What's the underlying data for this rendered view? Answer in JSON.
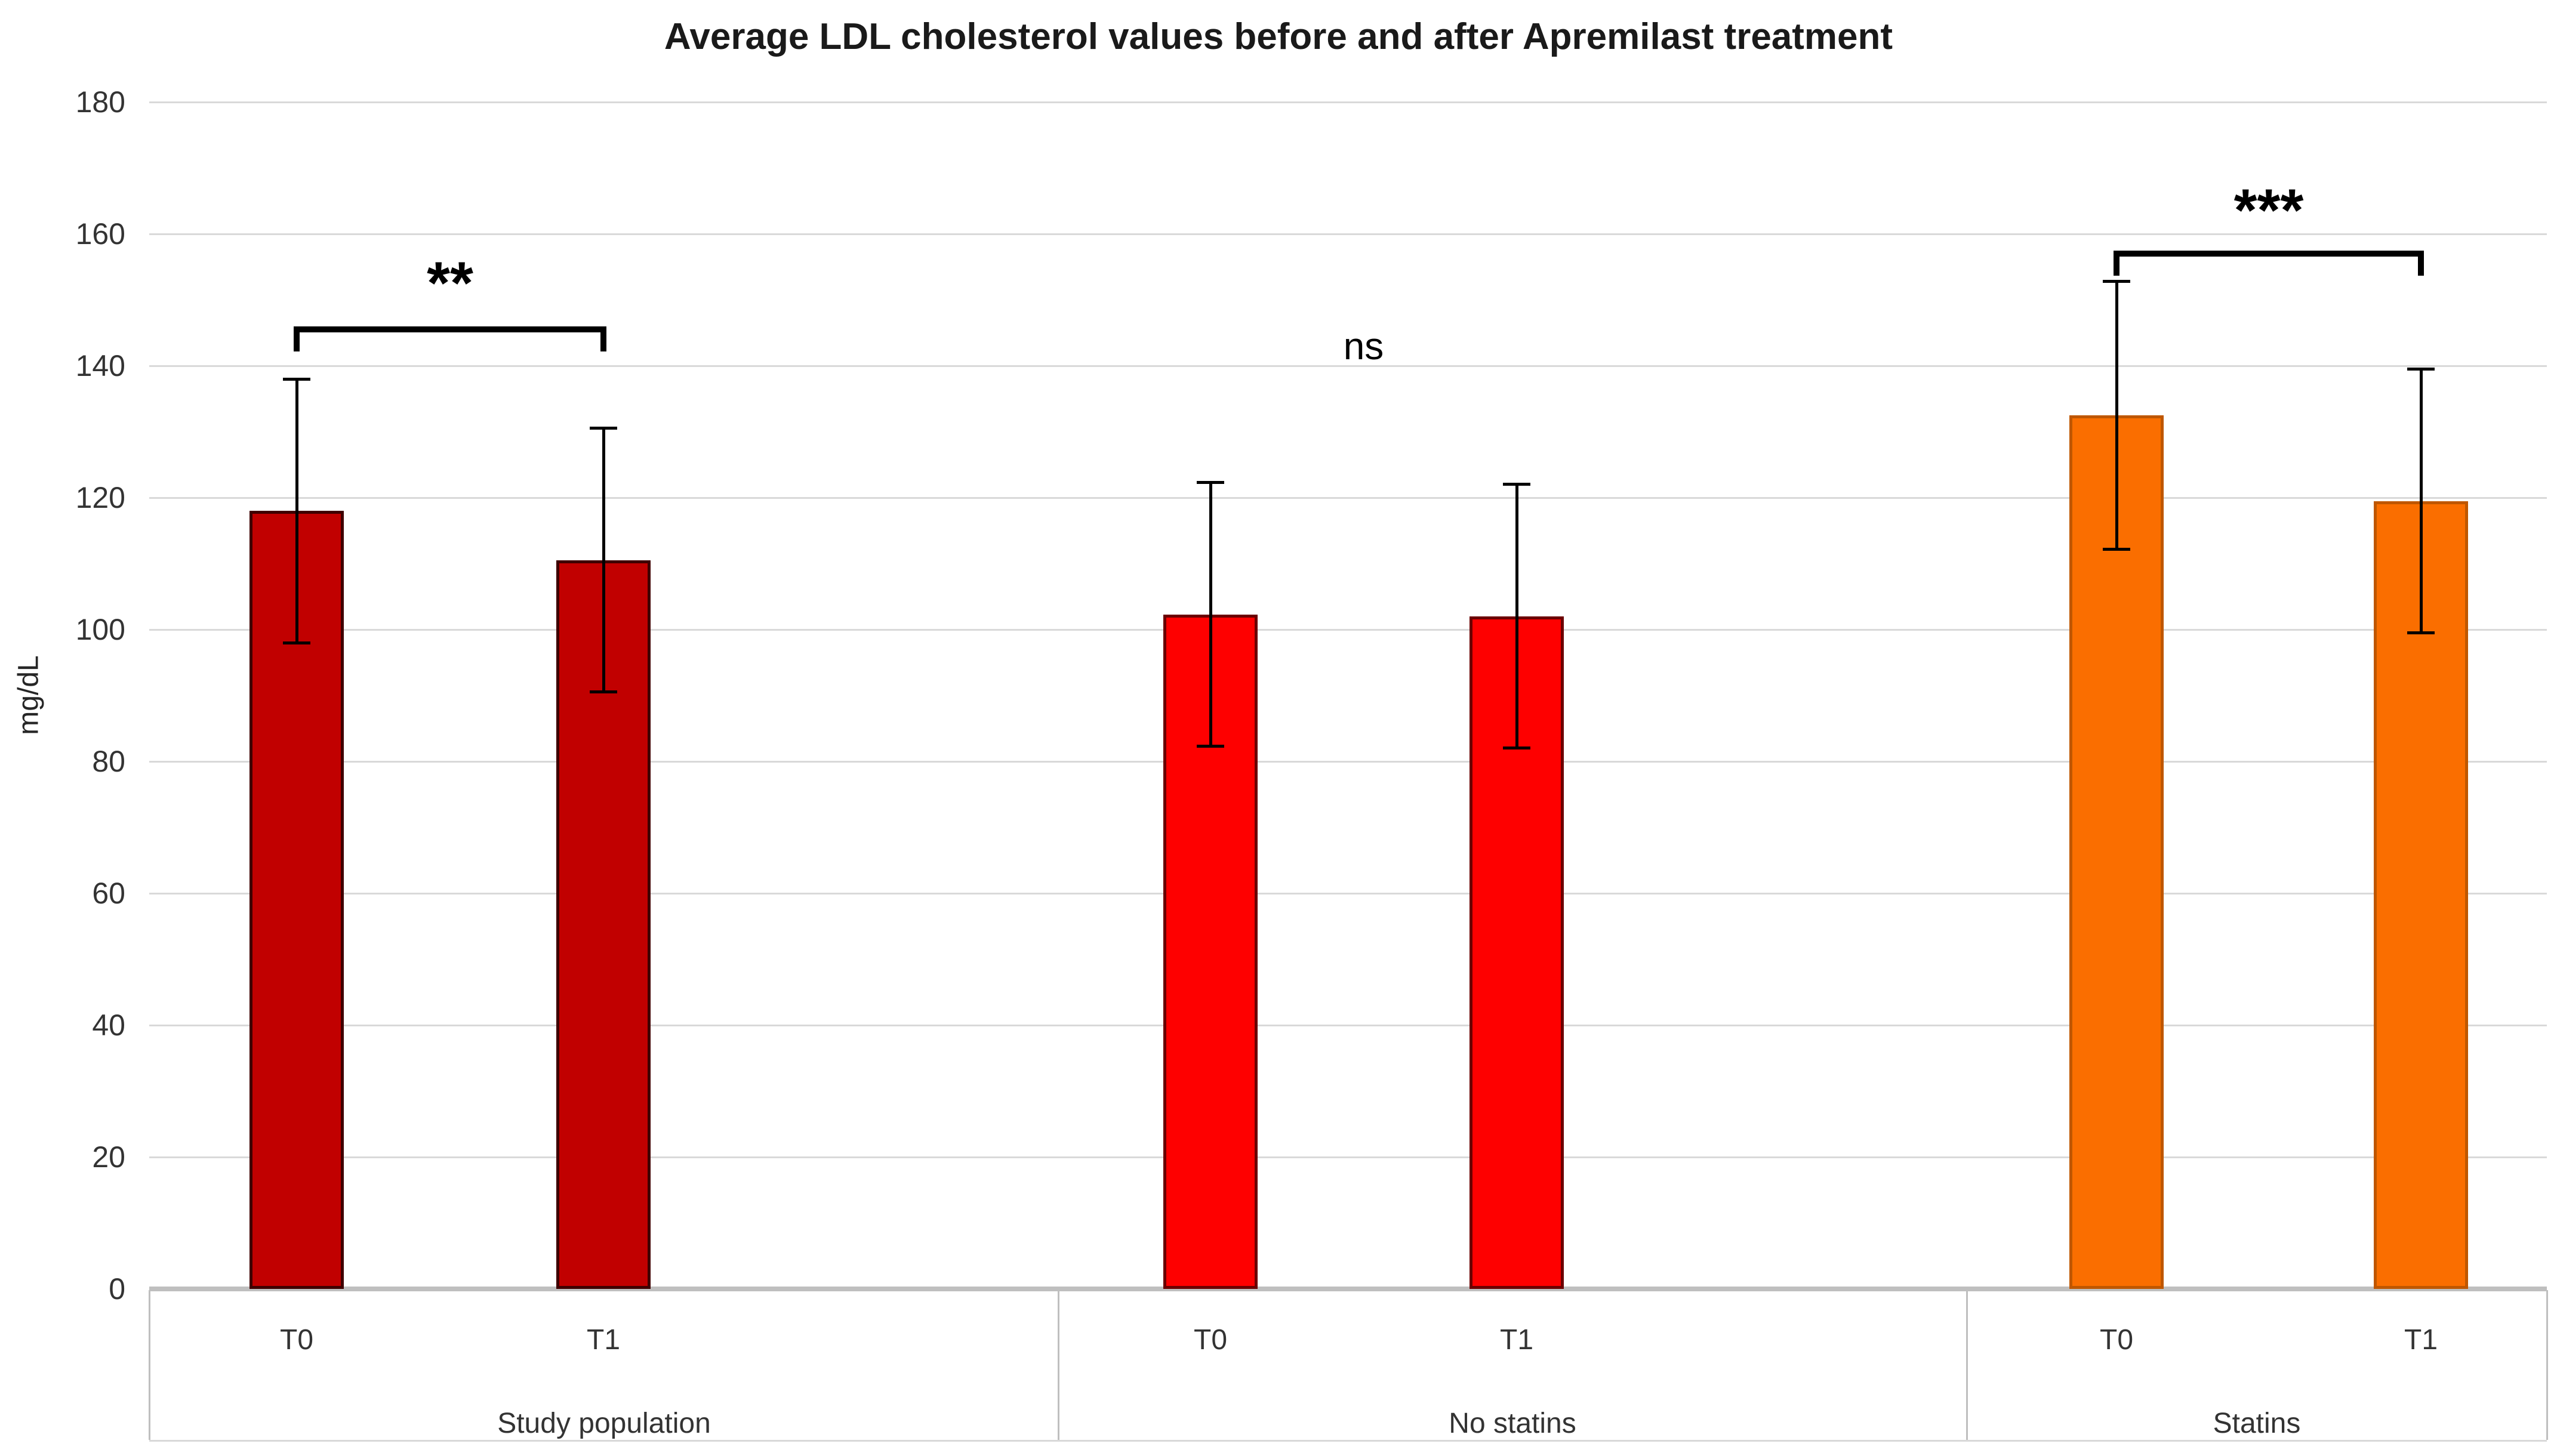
{
  "page": {
    "background": "#FFFFFF"
  },
  "chart_data": {
    "type": "bar",
    "title": "Average LDL cholesterol values before and after Apremilast treatment",
    "ylabel": "mg/dL",
    "ylim": [
      0,
      180
    ],
    "ytick_step": 20,
    "ytick_labels": [
      "0",
      "20",
      "40",
      "60",
      "80",
      "100",
      "120",
      "140",
      "160",
      "180"
    ],
    "grid": true,
    "legend": "none",
    "categories": [
      "T0",
      "T1"
    ],
    "groups": [
      {
        "label": "Study population",
        "fill": "#C10000",
        "border": "#3F0000",
        "bars": [
          {
            "category": "T0",
            "value": 118,
            "error": 20
          },
          {
            "category": "T1",
            "value": 110.5,
            "error": 20
          }
        ],
        "significance": {
          "label": "**",
          "style": "bracket",
          "bracket_value": 146,
          "label_value": 152.5
        }
      },
      {
        "label": "No statins",
        "fill": "#FE0000",
        "border": "#6B0000",
        "bars": [
          {
            "category": "T0",
            "value": 102.3,
            "error": 20
          },
          {
            "category": "T1",
            "value": 102,
            "error": 20
          }
        ],
        "significance": {
          "label": "ns",
          "style": "text",
          "label_value": 143
        }
      },
      {
        "label": "Statins",
        "fill": "#FA6E00",
        "border": "#BF5700",
        "bars": [
          {
            "category": "T0",
            "value": 132.5,
            "error": 20.3
          },
          {
            "category": "T1",
            "value": 119.5,
            "error": 20
          }
        ],
        "significance": {
          "label": "***",
          "style": "bracket",
          "bracket_value": 157.5,
          "label_value": 163.5
        }
      }
    ],
    "colors": {
      "gridline": "#D9D9D9",
      "axis_line": "#BFBFBF",
      "separator": "#BFBFBF",
      "error_bar": "#000000",
      "tick_text": "#333333",
      "title_text": "#1A1A1A"
    }
  }
}
